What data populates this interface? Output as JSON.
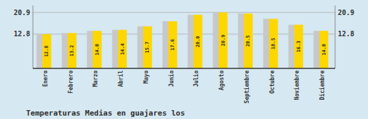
{
  "chart_data": {
    "type": "bar",
    "title": "Temperaturas Medias en guajares los",
    "categories": [
      "Enero",
      "Febrero",
      "Marzo",
      "Abril",
      "Mayo",
      "Junio",
      "Julio",
      "Agosto",
      "Septiembre",
      "Octubre",
      "Noviembre",
      "Diciembre"
    ],
    "values": [
      12.8,
      13.2,
      14.0,
      14.4,
      15.7,
      17.6,
      20.0,
      20.9,
      20.5,
      18.5,
      16.3,
      14.0
    ],
    "value_labels": [
      "12.8",
      "13.2",
      "14.0",
      "14.4",
      "15.7",
      "17.6",
      "20.0",
      "20.9",
      "20.5",
      "18.5",
      "16.3",
      "14.0"
    ],
    "color": "#FFD700",
    "ylim": [
      0,
      23.5
    ],
    "yticks": [
      12.8,
      20.9
    ],
    "y2lim": [
      0,
      23.5
    ],
    "y2ticks": [
      12.8,
      20.9
    ],
    "grid": true,
    "data_labels": true
  }
}
